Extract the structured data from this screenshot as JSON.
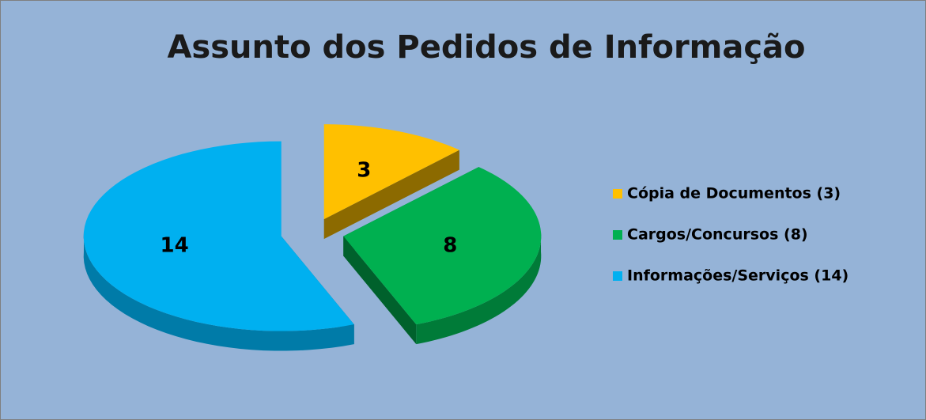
{
  "chart_data": {
    "type": "pie",
    "title": "Assunto dos Pedidos de Informação",
    "categories": [
      "Cópia de Documentos (3)",
      "Cargos/Concursos (8)",
      "Informações/Serviços (14)"
    ],
    "values": [
      3,
      8,
      14
    ],
    "colors": [
      "#ffc000",
      "#00b050",
      "#00b0f0"
    ],
    "legend": "right",
    "exploded": true,
    "three_d": true
  }
}
